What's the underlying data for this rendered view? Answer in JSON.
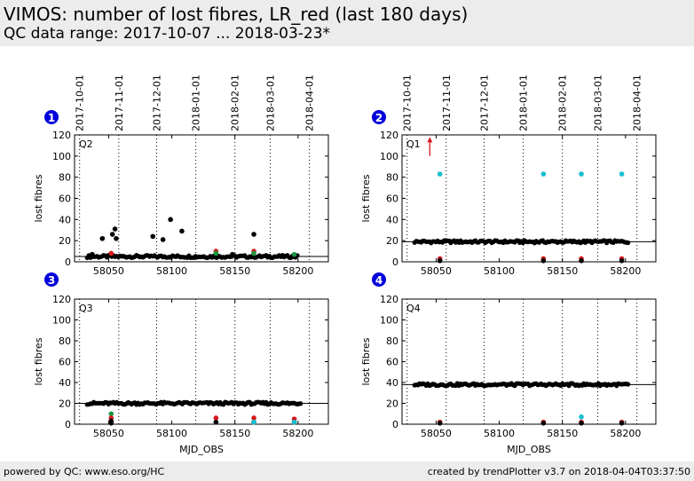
{
  "title": "VIMOS: number of lost fibres, LR_red (last 180 days)",
  "subtitle": "QC data range: 2017-10-07 ... 2018-03-23*",
  "footer": {
    "left": "powered by QC: www.eso.org/HC",
    "right": "created by trendPlotter v3.7 on 2018-04-04T03:37:50"
  },
  "colors": {
    "main": "#000000",
    "red": "#d7191c",
    "green": "#1a9641",
    "cyan": "#17becf",
    "badge": "#0000dd",
    "background_band": "#ececec"
  },
  "date_ticks": [
    {
      "label": "2017-10-01",
      "mjd": 58027
    },
    {
      "label": "2017-11-01",
      "mjd": 58058
    },
    {
      "label": "2017-12-01",
      "mjd": 58088
    },
    {
      "label": "2018-01-01",
      "mjd": 58119
    },
    {
      "label": "2018-02-01",
      "mjd": 58150
    },
    {
      "label": "2018-03-01",
      "mjd": 58178
    },
    {
      "label": "2018-04-01",
      "mjd": 58209
    }
  ],
  "chart_data": [
    {
      "type": "scatter",
      "badge": "1",
      "panel_label": "Q2",
      "xlabel": "",
      "ylabel": "lost fibres",
      "xlim": [
        58023,
        58224
      ],
      "ylim": [
        0,
        120
      ],
      "xticks": [
        58050,
        58100,
        58150,
        58200
      ],
      "yticks": [
        0,
        20,
        40,
        60,
        80,
        100,
        120
      ],
      "ref_line": 5,
      "base": {
        "value": 5,
        "from": 58033,
        "to": 58200,
        "step": 1.3
      },
      "points": [
        {
          "x": 58037,
          "y": 7,
          "c": "main"
        },
        {
          "x": 58045,
          "y": 22,
          "c": "main"
        },
        {
          "x": 58053,
          "y": 26,
          "c": "main"
        },
        {
          "x": 58055,
          "y": 31,
          "c": "main"
        },
        {
          "x": 58056,
          "y": 22,
          "c": "main"
        },
        {
          "x": 58085,
          "y": 24,
          "c": "main"
        },
        {
          "x": 58093,
          "y": 21,
          "c": "main"
        },
        {
          "x": 58099,
          "y": 40,
          "c": "main"
        },
        {
          "x": 58108,
          "y": 29,
          "c": "main"
        },
        {
          "x": 58148,
          "y": 7,
          "c": "main"
        },
        {
          "x": 58165,
          "y": 26,
          "c": "main"
        },
        {
          "x": 58052,
          "y": 8,
          "c": "red"
        },
        {
          "x": 58135,
          "y": 10,
          "c": "red"
        },
        {
          "x": 58165,
          "y": 10,
          "c": "red"
        },
        {
          "x": 58135,
          "y": 8,
          "c": "green"
        },
        {
          "x": 58165,
          "y": 8,
          "c": "green"
        },
        {
          "x": 58197,
          "y": 7,
          "c": "green"
        }
      ]
    },
    {
      "type": "scatter",
      "badge": "2",
      "panel_label": "Q1",
      "xlabel": "",
      "ylabel": "lost fibres",
      "xlim": [
        58023,
        58224
      ],
      "ylim": [
        0,
        120
      ],
      "xticks": [
        58050,
        58100,
        58150,
        58200
      ],
      "yticks": [
        0,
        20,
        40,
        60,
        80,
        100,
        120
      ],
      "ref_line": 19,
      "base": {
        "value": 19,
        "from": 58033,
        "to": 58203,
        "step": 1.3
      },
      "points": [
        {
          "x": 58053,
          "y": 83,
          "c": "cyan"
        },
        {
          "x": 58135,
          "y": 83,
          "c": "cyan"
        },
        {
          "x": 58165,
          "y": 83,
          "c": "cyan"
        },
        {
          "x": 58197,
          "y": 83,
          "c": "cyan"
        },
        {
          "x": 58053,
          "y": 3,
          "c": "red"
        },
        {
          "x": 58135,
          "y": 3,
          "c": "red"
        },
        {
          "x": 58165,
          "y": 3,
          "c": "red"
        },
        {
          "x": 58197,
          "y": 3,
          "c": "red"
        },
        {
          "x": 58053,
          "y": 1,
          "c": "main"
        },
        {
          "x": 58135,
          "y": 1,
          "c": "main"
        },
        {
          "x": 58165,
          "y": 1,
          "c": "main"
        },
        {
          "x": 58197,
          "y": 1,
          "c": "main"
        }
      ],
      "arrow": {
        "x": 58045,
        "y_from": 100,
        "y_to": 118
      }
    },
    {
      "type": "scatter",
      "badge": "3",
      "panel_label": "Q3",
      "xlabel": "MJD_OBS",
      "ylabel": "lost fibres",
      "xlim": [
        58023,
        58224
      ],
      "ylim": [
        0,
        120
      ],
      "xticks": [
        58050,
        58100,
        58150,
        58200
      ],
      "yticks": [
        0,
        20,
        40,
        60,
        80,
        100,
        120
      ],
      "ref_line": 20,
      "base": {
        "value": 20,
        "from": 58033,
        "to": 58203,
        "step": 1.3
      },
      "points": [
        {
          "x": 58052,
          "y": 10,
          "c": "green"
        },
        {
          "x": 58052,
          "y": 6,
          "c": "red"
        },
        {
          "x": 58135,
          "y": 6,
          "c": "red"
        },
        {
          "x": 58165,
          "y": 6,
          "c": "red"
        },
        {
          "x": 58197,
          "y": 5,
          "c": "red"
        },
        {
          "x": 58052,
          "y": 3,
          "c": "main"
        },
        {
          "x": 58135,
          "y": 2,
          "c": "main"
        },
        {
          "x": 58165,
          "y": 2,
          "c": "main"
        },
        {
          "x": 58197,
          "y": 2,
          "c": "main"
        },
        {
          "x": 58052,
          "y": 1,
          "c": "main"
        },
        {
          "x": 58165,
          "y": 2,
          "c": "cyan"
        },
        {
          "x": 58197,
          "y": 2,
          "c": "cyan"
        }
      ]
    },
    {
      "type": "scatter",
      "badge": "4",
      "panel_label": "Q4",
      "xlabel": "MJD_OBS",
      "ylabel": "lost fibres",
      "xlim": [
        58023,
        58224
      ],
      "ylim": [
        0,
        120
      ],
      "xticks": [
        58050,
        58100,
        58150,
        58200
      ],
      "yticks": [
        0,
        20,
        40,
        60,
        80,
        100,
        120
      ],
      "ref_line": 38,
      "base": {
        "value": 38,
        "from": 58033,
        "to": 58203,
        "step": 1.3
      },
      "points": [
        {
          "x": 58165,
          "y": 7,
          "c": "cyan"
        },
        {
          "x": 58053,
          "y": 2,
          "c": "red"
        },
        {
          "x": 58135,
          "y": 2,
          "c": "red"
        },
        {
          "x": 58165,
          "y": 2,
          "c": "red"
        },
        {
          "x": 58197,
          "y": 2,
          "c": "red"
        },
        {
          "x": 58053,
          "y": 1,
          "c": "main"
        },
        {
          "x": 58135,
          "y": 1,
          "c": "main"
        },
        {
          "x": 58165,
          "y": 1,
          "c": "main"
        },
        {
          "x": 58197,
          "y": 1,
          "c": "main"
        }
      ]
    }
  ]
}
